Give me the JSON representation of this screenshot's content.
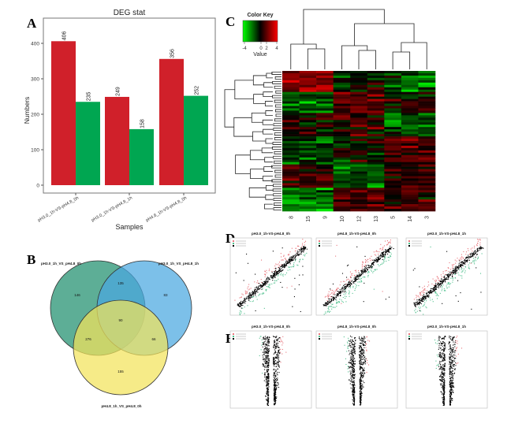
{
  "panels": {
    "a": "A",
    "b": "B",
    "c": "C",
    "d": "D",
    "e": "E"
  },
  "chart_data": [
    {
      "type": "bar",
      "title": "DEG stat",
      "xlabel": "Samples",
      "ylabel": "Numbers",
      "categories": [
        "pH3.0_1h-VS-pH4.8_0h",
        "pH3.0_1h-VS-pH4.8_1h",
        "pH4.8_1h-VS-pH4.8_0h"
      ],
      "series": [
        {
          "values": [
            406,
            249,
            356
          ],
          "color": "#d0202a"
        },
        {
          "values": [
            235,
            158,
            252
          ],
          "color": "#00a651"
        }
      ],
      "ylim": [
        0,
        450
      ],
      "yticks": [
        0,
        100,
        200,
        300,
        400
      ],
      "grid": false
    },
    {
      "type": "venn",
      "sets": [
        {
          "name": "pH3.0_1h_VS_pH4.8_0h",
          "color": "#1f8f6e"
        },
        {
          "name": "pH3.0_1h_VS_pH4.8_1h",
          "color": "#4aa8e0"
        },
        {
          "name": "pH4.8_1h_VS_pH4.8_0h",
          "color": "#f2e35a"
        }
      ],
      "regions": {
        "only_1": "146",
        "only_2": "83",
        "only_3": "155",
        "1_2": "135",
        "1_3": "276",
        "2_3": "66",
        "1_2_3": "90"
      }
    },
    {
      "type": "heatmap",
      "color_key": {
        "title": "Color Key",
        "label": "Value",
        "ticks": [
          "-4",
          "0",
          "2",
          "4"
        ],
        "low": "#00ff00",
        "mid": "#000000",
        "high": "#ff0000"
      },
      "columns": [
        "8",
        "15",
        "9",
        "10",
        "12",
        "13",
        "5",
        "14",
        "3"
      ]
    },
    {
      "type": "scatter",
      "plots": [
        {
          "title": "pH3.0_1h-VS-pH4.8_0h"
        },
        {
          "title": "pH4.8_1h-VS-pH4.8_0h"
        },
        {
          "title": "pH3.0_1h-VS-pH4.8_1h"
        }
      ],
      "colors": {
        "up": "#e8737a",
        "down": "#4fc08d",
        "ns": "#000000"
      }
    },
    {
      "type": "scatter",
      "subtype": "volcano",
      "plots": [
        {
          "title": "pH3.0_1h-VS-pH4.8_0h"
        },
        {
          "title": "pH4.8_1h-VS-pH4.8_0h"
        },
        {
          "title": "pH3.0_1h-VS-pH4.8_1h"
        }
      ],
      "colors": {
        "up": "#e8737a",
        "down": "#4fc08d",
        "ns": "#000000"
      }
    }
  ]
}
